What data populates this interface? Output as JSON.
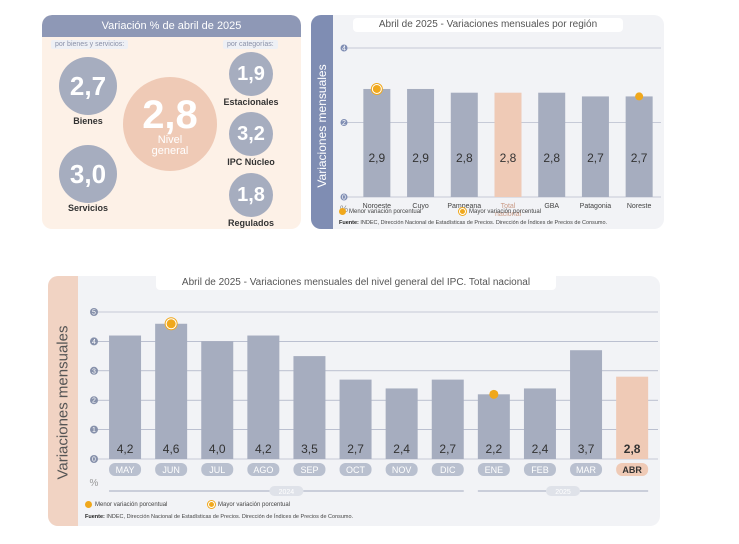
{
  "colors": {
    "bar": "#a6adbf",
    "bar_highlight": "#efcab6",
    "panel_header": "#8e98b6",
    "axis_band_region": "#7f8db3",
    "axis_band_total": "#f1d3c3",
    "marker": "#f0a81c",
    "label_chip": "#b9c0cf"
  },
  "summary": {
    "title": "Variación % de abril de 2025",
    "left_sub": "por bienes y servicios:",
    "right_sub": "por categorías:",
    "general": {
      "value": "2,8",
      "label": "Nivel general"
    },
    "left_items": [
      {
        "value": "2,7",
        "label": "Bienes"
      },
      {
        "value": "3,0",
        "label": "Servicios"
      }
    ],
    "right_items": [
      {
        "value": "1,9",
        "label": "Estacionales"
      },
      {
        "value": "3,2",
        "label": "IPC Núcleo"
      },
      {
        "value": "1,8",
        "label": "Regulados"
      }
    ]
  },
  "chart_data": [
    {
      "type": "bar",
      "title_prefix": "Abril de 2025 - ",
      "title": "Variaciones mensuales por región",
      "ylabel": "Variaciones mensuales",
      "yunit": "%",
      "ylim": [
        0,
        4
      ],
      "yticks": [
        0,
        2,
        4
      ],
      "categories": [
        "Noroeste",
        "Cuyo",
        "Pampeana",
        "Total nacional",
        "GBA",
        "Patagonia",
        "Noreste"
      ],
      "values": [
        2.9,
        2.9,
        2.8,
        2.8,
        2.8,
        2.7,
        2.7
      ],
      "value_labels": [
        "2,9",
        "2,9",
        "2,8",
        "2,8",
        "2,8",
        "2,7",
        "2,7"
      ],
      "highlight_index": 3,
      "markers": [
        {
          "index": 0,
          "kind": "mayor"
        },
        {
          "index": 6,
          "kind": "menor"
        }
      ],
      "legend": [
        "Menor variación porcentual",
        "Mayor variación porcentual"
      ],
      "source_label": "Fuente:",
      "source_text": "INDEC, Dirección Nacional de Estadísticas de Precios. Dirección de Índices de Precios de Consumo.",
      "grid": true
    },
    {
      "type": "bar",
      "title_prefix": "Abril de 2025 - ",
      "title": "Variaciones mensuales del nivel general del IPC. Total nacional",
      "ylabel": "Variaciones mensuales",
      "yunit": "%",
      "ylim": [
        0,
        5
      ],
      "yticks": [
        0,
        1,
        2,
        3,
        4,
        5
      ],
      "categories": [
        "MAY",
        "JUN",
        "JUL",
        "AGO",
        "SEP",
        "OCT",
        "NOV",
        "DIC",
        "ENE",
        "FEB",
        "MAR",
        "ABR"
      ],
      "values": [
        4.2,
        4.6,
        4.0,
        4.2,
        3.5,
        2.7,
        2.4,
        2.7,
        2.2,
        2.4,
        3.7,
        2.8
      ],
      "value_labels": [
        "4,2",
        "4,6",
        "4,0",
        "4,2",
        "3,5",
        "2,7",
        "2,4",
        "2,7",
        "2,2",
        "2,4",
        "3,7",
        "2,8"
      ],
      "highlight_index": 11,
      "markers": [
        {
          "index": 1,
          "kind": "mayor"
        },
        {
          "index": 8,
          "kind": "menor"
        }
      ],
      "year_groups": [
        {
          "label": "2024",
          "from": 0,
          "to": 7
        },
        {
          "label": "2025",
          "from": 8,
          "to": 11
        }
      ],
      "legend": [
        "Menor variación porcentual",
        "Mayor variación porcentual"
      ],
      "source_label": "Fuente:",
      "source_text": "INDEC, Dirección Nacional de Estadísticas de Precios. Dirección de Índices de Precios de Consumo.",
      "grid": true
    }
  ]
}
